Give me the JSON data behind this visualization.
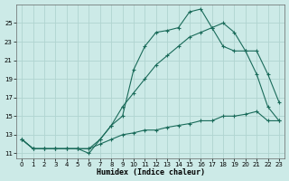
{
  "xlabel": "Humidex (Indice chaleur)",
  "bg_color": "#cceae7",
  "grid_color": "#b0d4d0",
  "line_color": "#1a6b5a",
  "xlim": [
    -0.5,
    23.5
  ],
  "ylim": [
    10.5,
    27.0
  ],
  "xticks": [
    0,
    1,
    2,
    3,
    4,
    5,
    6,
    7,
    8,
    9,
    10,
    11,
    12,
    13,
    14,
    15,
    16,
    17,
    18,
    19,
    20,
    21,
    22,
    23
  ],
  "yticks": [
    11,
    13,
    15,
    17,
    19,
    21,
    23,
    25
  ],
  "line1_x": [
    0,
    1,
    2,
    3,
    4,
    5,
    6,
    7,
    8,
    9,
    10,
    11,
    12,
    13,
    14,
    15,
    16,
    17,
    18,
    19,
    20,
    21,
    22,
    23
  ],
  "line1_y": [
    12.5,
    11.5,
    11.5,
    11.5,
    11.5,
    11.5,
    11.0,
    12.5,
    14.0,
    15.0,
    20.0,
    22.5,
    24.0,
    24.2,
    24.5,
    26.2,
    26.5,
    24.5,
    25.0,
    24.0,
    22.0,
    19.5,
    16.0,
    14.5
  ],
  "line2_x": [
    0,
    1,
    2,
    3,
    4,
    5,
    6,
    7,
    8,
    9,
    10,
    11,
    12,
    13,
    14,
    15,
    16,
    17,
    18,
    19,
    20,
    21,
    22,
    23
  ],
  "line2_y": [
    12.5,
    11.5,
    11.5,
    11.5,
    11.5,
    11.5,
    11.5,
    12.5,
    14.0,
    16.0,
    17.5,
    19.0,
    20.5,
    21.5,
    22.5,
    23.5,
    24.0,
    24.5,
    22.5,
    22.0,
    22.0,
    22.0,
    19.5,
    16.5
  ],
  "line3_x": [
    0,
    1,
    2,
    3,
    4,
    5,
    6,
    7,
    8,
    9,
    10,
    11,
    12,
    13,
    14,
    15,
    16,
    17,
    18,
    19,
    20,
    21,
    22,
    23
  ],
  "line3_y": [
    12.5,
    11.5,
    11.5,
    11.5,
    11.5,
    11.5,
    11.5,
    12.0,
    12.5,
    13.0,
    13.2,
    13.5,
    13.5,
    13.8,
    14.0,
    14.2,
    14.5,
    14.5,
    15.0,
    15.0,
    15.2,
    15.5,
    14.5,
    14.5
  ]
}
